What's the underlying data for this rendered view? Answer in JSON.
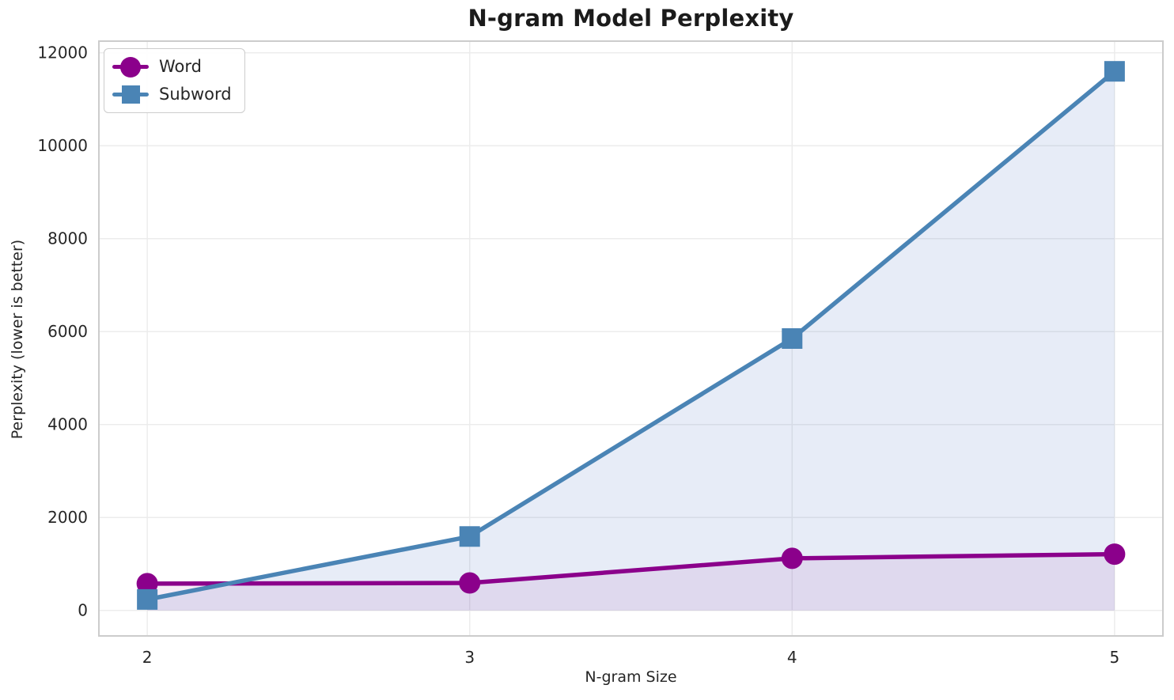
{
  "chart_data": {
    "type": "line",
    "title": "N-gram Model Perplexity",
    "xlabel": "N-gram Size",
    "ylabel": "Perplexity (lower is better)",
    "x": [
      2,
      3,
      4,
      5
    ],
    "series": [
      {
        "name": "Word",
        "marker": "circle",
        "color": "#8B008B",
        "fill": "rgba(139,0,139,0.08)",
        "values": [
          575,
          590,
          1120,
          1210
        ]
      },
      {
        "name": "Subword",
        "marker": "square",
        "color": "#4A84B5",
        "fill": "rgba(70,110,190,0.13)",
        "values": [
          235,
          1590,
          5850,
          11600
        ]
      }
    ],
    "xticks": [
      2,
      3,
      4,
      5
    ],
    "yticks": [
      0,
      2000,
      4000,
      6000,
      8000,
      10000,
      12000
    ],
    "xlim": [
      1.85,
      5.15
    ],
    "ylim": [
      -550,
      12250
    ],
    "grid": true,
    "legend_position": "upper left",
    "colors": {
      "grid": "#ececec",
      "spine": "#cccccc",
      "tick_text": "#262626",
      "title_text": "#1b1b1b",
      "background": "#ffffff"
    }
  }
}
